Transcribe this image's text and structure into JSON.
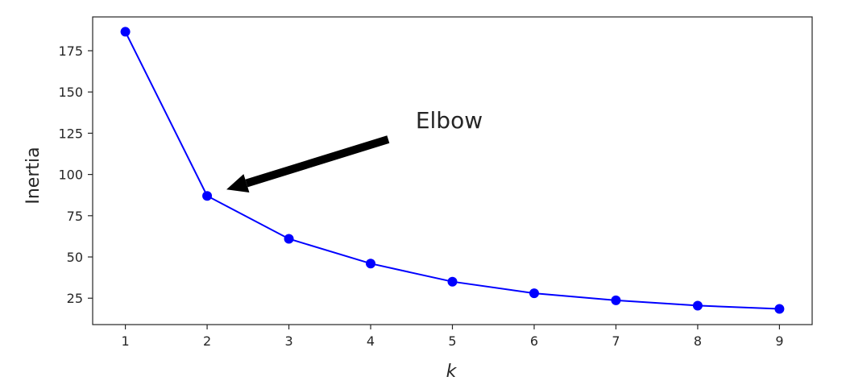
{
  "chart_data": {
    "type": "line",
    "title": "",
    "xlabel": "k",
    "ylabel": "Inertia",
    "x": [
      1,
      2,
      3,
      4,
      5,
      6,
      7,
      8,
      9
    ],
    "series": [
      {
        "values": [
          186.5,
          87.0,
          61.0,
          46.0,
          35.0,
          28.0,
          23.7,
          20.5,
          18.5
        ],
        "color": "#0000ff",
        "marker": "circle"
      }
    ],
    "xlim": [
      0.6,
      9.4
    ],
    "ylim": [
      9.0,
      195.5
    ],
    "xticks": [
      1,
      2,
      3,
      4,
      5,
      6,
      7,
      8,
      9
    ],
    "yticks": [
      25,
      50,
      75,
      100,
      125,
      150,
      175
    ],
    "grid": false,
    "annotation": {
      "text": "Elbow",
      "point": [
        2,
        87.0
      ],
      "text_position": [
        4.55,
        133
      ],
      "arrow_color": "#000000"
    }
  }
}
